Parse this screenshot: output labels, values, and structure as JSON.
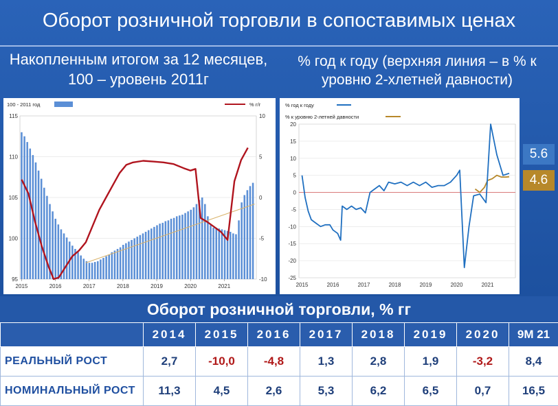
{
  "title": "Оборот розничной торговли в сопоставимых ценах",
  "left_subtitle": "Накопленным итогом за 12 месяцев, 100 – уровень 2011г",
  "right_subtitle": "% год к году (верхняя линия – в % к уровню 2-хлетней давности)",
  "colors": {
    "bar": "#5b8fd6",
    "red": "#b0141e",
    "trend": "#d9b26a",
    "blue": "#1f6fc0",
    "gold": "#b7882a"
  },
  "badges": {
    "blue": "5.6",
    "gold": "4.6"
  },
  "chart_data": [
    {
      "type": "bar",
      "legend": {
        "bars": "100 - 2011 год",
        "line": "% г/г"
      },
      "x_ticks": [
        "2015",
        "2016",
        "2017",
        "2018",
        "2019",
        "2020",
        "2021"
      ],
      "y_left_ticks": [
        "115",
        "110",
        "105",
        "100",
        "95"
      ],
      "y_right_ticks": [
        "10",
        "5",
        "0",
        "-5",
        "-10"
      ],
      "ylim_left": [
        95,
        115
      ],
      "ylim_right": [
        -10,
        10
      ],
      "bar_values": [
        113.0,
        112.5,
        111.8,
        111.0,
        110.2,
        109.3,
        108.3,
        107.3,
        106.2,
        105.2,
        104.2,
        103.3,
        102.4,
        101.7,
        101.1,
        100.6,
        100.1,
        99.6,
        99.1,
        98.7,
        98.3,
        97.9,
        97.5,
        97.2,
        97.0,
        97.0,
        97.1,
        97.2,
        97.4,
        97.6,
        97.8,
        98.0,
        98.3,
        98.5,
        98.7,
        98.9,
        99.2,
        99.4,
        99.6,
        99.8,
        100.0,
        100.2,
        100.4,
        100.6,
        100.8,
        101.0,
        101.2,
        101.4,
        101.6,
        101.8,
        101.9,
        102.1,
        102.2,
        102.4,
        102.5,
        102.7,
        102.8,
        102.9,
        103.1,
        103.3,
        103.5,
        103.8,
        104.2,
        104.7,
        105.0,
        104.2,
        102.7,
        101.6,
        101.3,
        101.3,
        101.2,
        101.1,
        101.0,
        100.9,
        100.8,
        100.6,
        100.5,
        102.2,
        104.4,
        105.3,
        105.9,
        106.4,
        106.8
      ],
      "line_yoy": [
        {
          "x": 2015.0,
          "y": 2.2
        },
        {
          "x": 2015.2,
          "y": 0.5
        },
        {
          "x": 2015.4,
          "y": -3.0
        },
        {
          "x": 2015.6,
          "y": -6.0
        },
        {
          "x": 2015.8,
          "y": -8.5
        },
        {
          "x": 2015.95,
          "y": -10.0
        },
        {
          "x": 2016.1,
          "y": -9.8
        },
        {
          "x": 2016.3,
          "y": -8.5
        },
        {
          "x": 2016.5,
          "y": -7.2
        },
        {
          "x": 2016.7,
          "y": -6.5
        },
        {
          "x": 2016.9,
          "y": -5.5
        },
        {
          "x": 2017.1,
          "y": -3.5
        },
        {
          "x": 2017.3,
          "y": -1.5
        },
        {
          "x": 2017.5,
          "y": 0.0
        },
        {
          "x": 2017.7,
          "y": 1.5
        },
        {
          "x": 2017.9,
          "y": 3.0
        },
        {
          "x": 2018.1,
          "y": 4.0
        },
        {
          "x": 2018.3,
          "y": 4.3
        },
        {
          "x": 2018.6,
          "y": 4.5
        },
        {
          "x": 2018.9,
          "y": 4.4
        },
        {
          "x": 2019.2,
          "y": 4.3
        },
        {
          "x": 2019.5,
          "y": 4.1
        },
        {
          "x": 2019.8,
          "y": 3.6
        },
        {
          "x": 2020.0,
          "y": 3.3
        },
        {
          "x": 2020.15,
          "y": 3.5
        },
        {
          "x": 2020.3,
          "y": -2.5
        },
        {
          "x": 2020.5,
          "y": -3.0
        },
        {
          "x": 2020.7,
          "y": -3.6
        },
        {
          "x": 2020.9,
          "y": -4.2
        },
        {
          "x": 2021.1,
          "y": -5.2
        },
        {
          "x": 2021.3,
          "y": 2.0
        },
        {
          "x": 2021.5,
          "y": 4.6
        },
        {
          "x": 2021.7,
          "y": 6.1
        }
      ],
      "trend_line": [
        {
          "x": 2016.9,
          "y": 97.0
        },
        {
          "x": 2021.9,
          "y": 104.2
        }
      ]
    },
    {
      "type": "line",
      "legend": {
        "yoy": "% год к году",
        "two_year": "% к уровню 2-летней давности"
      },
      "x_ticks": [
        "2015",
        "2016",
        "2017",
        "2018",
        "2019",
        "2020",
        "2021"
      ],
      "y_ticks": [
        "20",
        "15",
        "10",
        "5",
        "0",
        "-5",
        "-10",
        "-15",
        "-20",
        "-25"
      ],
      "ylim": [
        -25,
        20
      ],
      "series_yoy": [
        {
          "x": 2015.0,
          "y": 5.0
        },
        {
          "x": 2015.1,
          "y": -1.5
        },
        {
          "x": 2015.2,
          "y": -5.5
        },
        {
          "x": 2015.3,
          "y": -8.0
        },
        {
          "x": 2015.45,
          "y": -9.0
        },
        {
          "x": 2015.6,
          "y": -10.0
        },
        {
          "x": 2015.75,
          "y": -9.5
        },
        {
          "x": 2015.9,
          "y": -9.5
        },
        {
          "x": 2016.0,
          "y": -11.0
        },
        {
          "x": 2016.15,
          "y": -12.0
        },
        {
          "x": 2016.25,
          "y": -14.0
        },
        {
          "x": 2016.3,
          "y": -4.0
        },
        {
          "x": 2016.45,
          "y": -5.0
        },
        {
          "x": 2016.6,
          "y": -4.0
        },
        {
          "x": 2016.75,
          "y": -5.0
        },
        {
          "x": 2016.9,
          "y": -4.5
        },
        {
          "x": 2017.05,
          "y": -6.0
        },
        {
          "x": 2017.2,
          "y": 0.0
        },
        {
          "x": 2017.35,
          "y": 1.0
        },
        {
          "x": 2017.5,
          "y": 2.0
        },
        {
          "x": 2017.65,
          "y": 0.5
        },
        {
          "x": 2017.8,
          "y": 3.0
        },
        {
          "x": 2018.0,
          "y": 2.5
        },
        {
          "x": 2018.2,
          "y": 3.0
        },
        {
          "x": 2018.4,
          "y": 2.0
        },
        {
          "x": 2018.6,
          "y": 3.0
        },
        {
          "x": 2018.8,
          "y": 2.0
        },
        {
          "x": 2019.0,
          "y": 3.0
        },
        {
          "x": 2019.2,
          "y": 1.5
        },
        {
          "x": 2019.4,
          "y": 2.0
        },
        {
          "x": 2019.6,
          "y": 2.0
        },
        {
          "x": 2019.8,
          "y": 3.0
        },
        {
          "x": 2020.0,
          "y": 5.0
        },
        {
          "x": 2020.1,
          "y": 6.5
        },
        {
          "x": 2020.25,
          "y": -22.0
        },
        {
          "x": 2020.4,
          "y": -10.0
        },
        {
          "x": 2020.55,
          "y": -1.0
        },
        {
          "x": 2020.75,
          "y": -0.5
        },
        {
          "x": 2020.95,
          "y": -3.0
        },
        {
          "x": 2021.1,
          "y": 21.0
        },
        {
          "x": 2021.3,
          "y": 11.0
        },
        {
          "x": 2021.5,
          "y": 5.0
        },
        {
          "x": 2021.7,
          "y": 5.6
        }
      ],
      "series_two_year": [
        {
          "x": 2020.6,
          "y": 1.0
        },
        {
          "x": 2020.75,
          "y": 0.0
        },
        {
          "x": 2020.9,
          "y": 1.5
        },
        {
          "x": 2021.0,
          "y": 3.5
        },
        {
          "x": 2021.15,
          "y": 4.0
        },
        {
          "x": 2021.3,
          "y": 5.0
        },
        {
          "x": 2021.45,
          "y": 4.5
        },
        {
          "x": 2021.6,
          "y": 4.5
        },
        {
          "x": 2021.7,
          "y": 4.6
        }
      ]
    }
  ],
  "table": {
    "title": "Оборот розничной торговли, % гг",
    "headers": [
      "",
      "2014",
      "2015",
      "2016",
      "2017",
      "2018",
      "2019",
      "2020",
      "9М 21"
    ],
    "rows": [
      {
        "label": "РЕАЛЬНЫЙ РОСТ",
        "values": [
          "2,7",
          "-10,0",
          "-4,8",
          "1,3",
          "2,8",
          "1,9",
          "-3,2",
          "8,4"
        ]
      },
      {
        "label": "НОМИНАЛЬНЫЙ РОСТ",
        "values": [
          "11,3",
          "4,5",
          "2,6",
          "5,3",
          "6,2",
          "6,5",
          "0,7",
          "16,5"
        ]
      }
    ]
  }
}
